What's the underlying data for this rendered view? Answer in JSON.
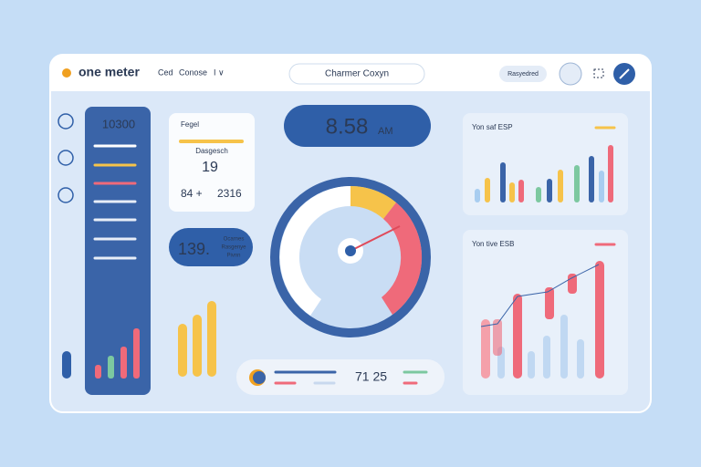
{
  "header": {
    "brand": "one meter",
    "nav": [
      "Ced",
      "Conose",
      "I ∨"
    ],
    "search": "Charmer Coxyn",
    "button": "Rasyedred"
  },
  "sidebar": {
    "value": "10300"
  },
  "card": {
    "title": "Fegel",
    "label": "Dasgesch",
    "value": "19",
    "left": "84 +",
    "right": "2316"
  },
  "pill": {
    "value": "139.",
    "lines": [
      "Ocarnes",
      "Rasgenye",
      "Pivnn"
    ]
  },
  "clock": {
    "time": "8.58",
    "suffix": "AM"
  },
  "footer": {
    "value": "71 25"
  },
  "charts": [
    {
      "title": "Yon saf ESP"
    },
    {
      "title": "Yon tive ESB"
    }
  ]
}
